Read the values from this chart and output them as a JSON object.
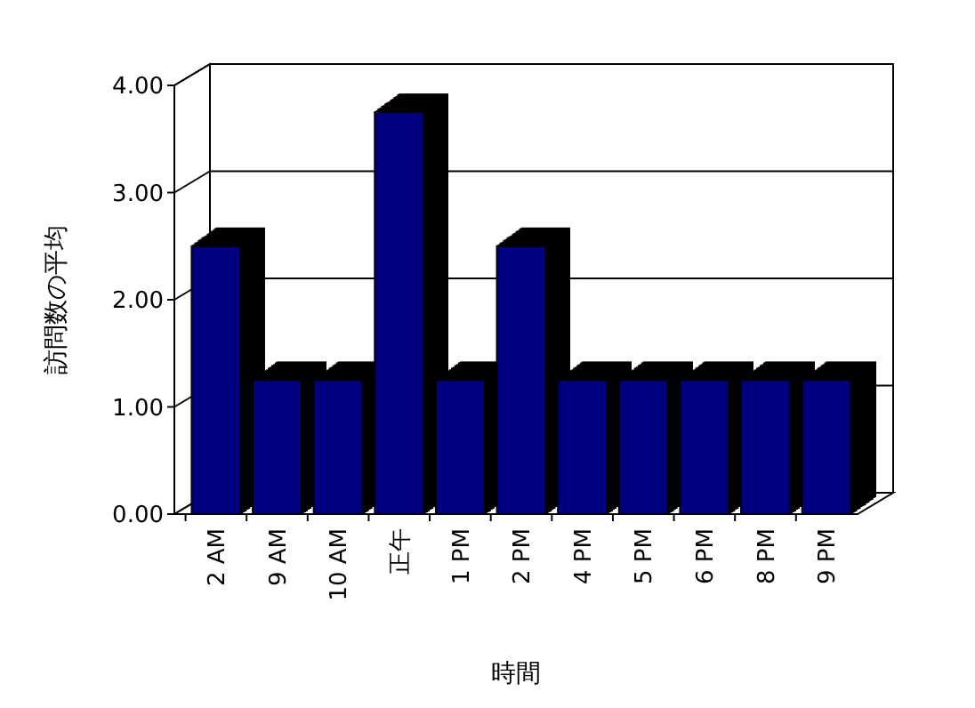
{
  "chart_data": {
    "type": "bar",
    "xlabel": "時間",
    "ylabel": "訪問数の平均",
    "categories": [
      "2 AM",
      "9 AM",
      "10 AM",
      "正午",
      "1 PM",
      "2 PM",
      "4 PM",
      "5 PM",
      "6 PM",
      "8 PM",
      "9 PM"
    ],
    "values": [
      2.5,
      1.25,
      1.25,
      3.75,
      1.25,
      2.5,
      1.25,
      1.25,
      1.25,
      1.25,
      1.25
    ],
    "color": "#000080",
    "ylim": [
      0,
      4
    ],
    "yticks": [
      {
        "value": 0,
        "label": "0.00"
      },
      {
        "value": 1,
        "label": "1.00"
      },
      {
        "value": 2,
        "label": "2.00"
      },
      {
        "value": 3,
        "label": "3.00"
      },
      {
        "value": 4,
        "label": "4.00"
      }
    ],
    "grid": "y"
  }
}
